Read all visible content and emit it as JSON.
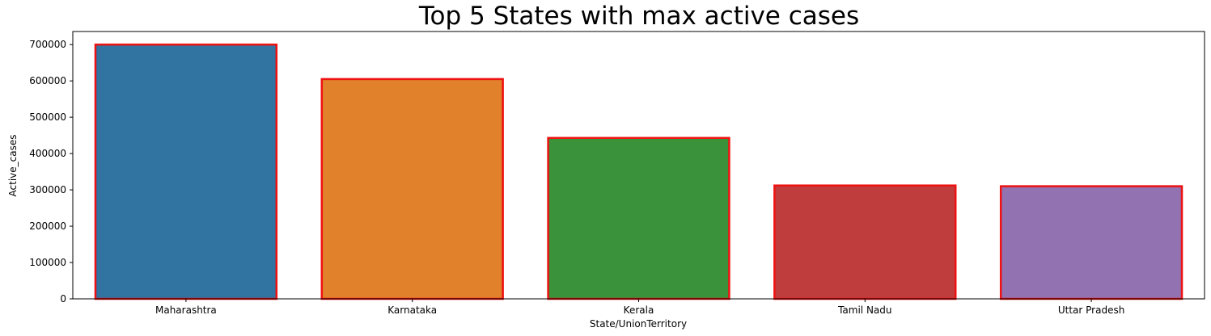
{
  "chart_data": {
    "type": "bar",
    "title": "Top 5 States with max active cases",
    "xlabel": "State/UnionTerritory",
    "ylabel": "Active_cases",
    "categories": [
      "Maharashtra",
      "Karnataka",
      "Kerala",
      "Tamil Nadu",
      "Uttar Pradesh"
    ],
    "values": [
      700000,
      605000,
      443000,
      312000,
      310000
    ],
    "colors": [
      "#3274a1",
      "#e1812c",
      "#3a923a",
      "#c03d3e",
      "#9372b2"
    ],
    "edge_color": "#ee1111",
    "ylim": [
      0,
      736000
    ],
    "yticks": [
      0,
      100000,
      200000,
      300000,
      400000,
      500000,
      600000,
      700000
    ],
    "grid": false
  }
}
